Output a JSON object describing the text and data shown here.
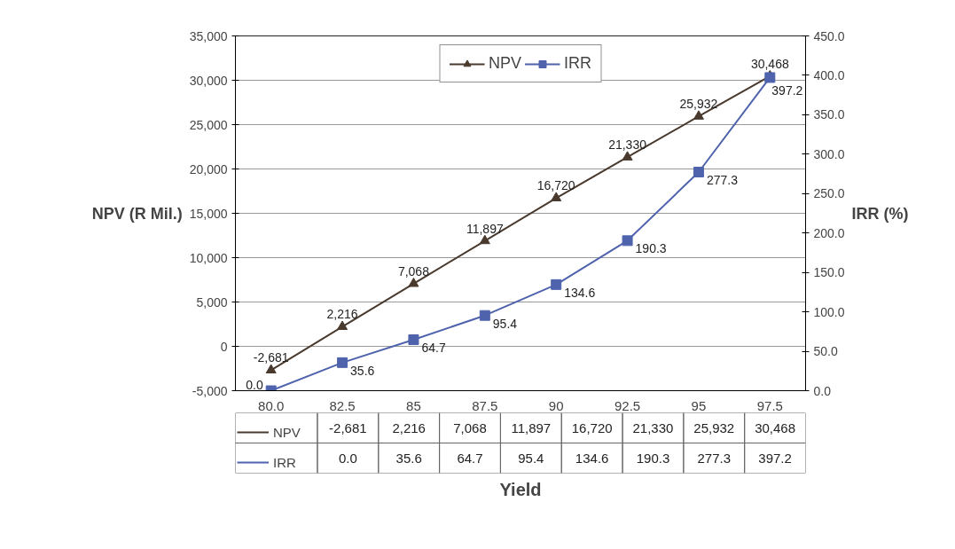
{
  "chart_data": {
    "type": "line",
    "xlabel": "Yield",
    "ylabel": "NPV (R Mil.)",
    "y2label": "IRR (%)",
    "categories": [
      "80.0",
      "82.5",
      "85",
      "87.5",
      "90",
      "92.5",
      "95",
      "97.5"
    ],
    "series": [
      {
        "name": "NPV",
        "color": "#4a3a2e",
        "marker": "triangle",
        "values": [
          -2681,
          2216,
          7068,
          11897,
          16720,
          21330,
          25932,
          30468
        ],
        "value_labels": [
          "-2,681",
          "2,216",
          "7,068",
          "11,897",
          "16,720",
          "21,330",
          "25,932",
          "30,468"
        ]
      },
      {
        "name": "IRR",
        "color": "#4f63ad",
        "marker": "square",
        "axis": "y2",
        "values": [
          0.0,
          35.6,
          64.7,
          95.4,
          134.6,
          190.3,
          277.3,
          397.2
        ],
        "value_labels": [
          "0.0",
          "35.6",
          "64.7",
          "95.4",
          "134.6",
          "190.3",
          "277.3",
          "397.2"
        ]
      }
    ],
    "ylim": [
      -5000,
      35000
    ],
    "yticks": [
      {
        "value": -5000,
        "label": "-5,000"
      },
      0,
      {
        "value": 5000,
        "label": "5,000"
      },
      {
        "value": 10000,
        "label": "10,000"
      },
      {
        "value": 15000,
        "label": "15,000"
      },
      {
        "value": 20000,
        "label": "20,000"
      },
      {
        "value": 25000,
        "label": "25,000"
      },
      {
        "value": 30000,
        "label": "30,000"
      },
      {
        "value": 35000,
        "label": "35,000"
      }
    ],
    "y2lim": [
      0,
      450
    ],
    "y2ticks": [
      {
        "value": 0,
        "label": "0.0"
      },
      {
        "value": 50,
        "label": "50.0"
      },
      {
        "value": 100,
        "label": "100.0"
      },
      {
        "value": 150,
        "label": "150.0"
      },
      {
        "value": 200,
        "label": "200.0"
      },
      {
        "value": 250,
        "label": "250.0"
      },
      {
        "value": 300,
        "label": "300.0"
      },
      {
        "value": 350,
        "label": "350.0"
      },
      {
        "value": 400,
        "label": "400.0"
      },
      {
        "value": 450,
        "label": "450.0"
      }
    ],
    "grid": "y",
    "legend": "top",
    "line_style": "solid"
  }
}
